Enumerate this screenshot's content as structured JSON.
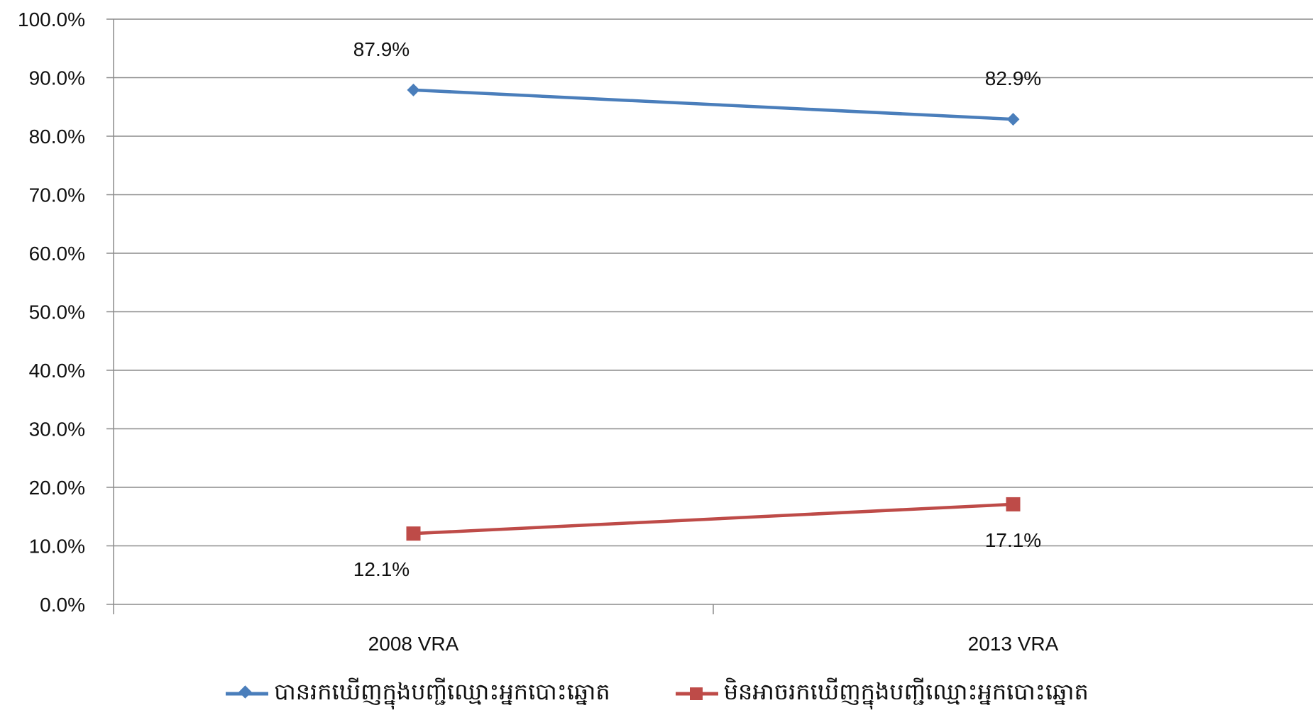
{
  "chart_data": {
    "type": "line",
    "categories": [
      "2008 VRA",
      "2013 VRA"
    ],
    "ylim": [
      0,
      100
    ],
    "yticks": [
      "0.0%",
      "10.0%",
      "20.0%",
      "30.0%",
      "40.0%",
      "50.0%",
      "60.0%",
      "70.0%",
      "80.0%",
      "90.0%",
      "100.0%"
    ],
    "grid": true,
    "legend_position": "bottom",
    "series": [
      {
        "name": "បានរកឃើញក្នុងបញ្ជីឈ្មោះអ្នកបោះឆ្នោត",
        "values": [
          87.9,
          82.9
        ],
        "labels": [
          "87.9%",
          "82.9%"
        ],
        "color": "#4A7EBB",
        "marker": "diamond"
      },
      {
        "name": "មិនអាចរកឃើញក្នុងបញ្ជីឈ្មោះអ្នកបោះឆ្នោត",
        "values": [
          12.1,
          17.1
        ],
        "labels": [
          "12.1%",
          "17.1%"
        ],
        "color": "#BE4B48",
        "marker": "square"
      }
    ]
  }
}
